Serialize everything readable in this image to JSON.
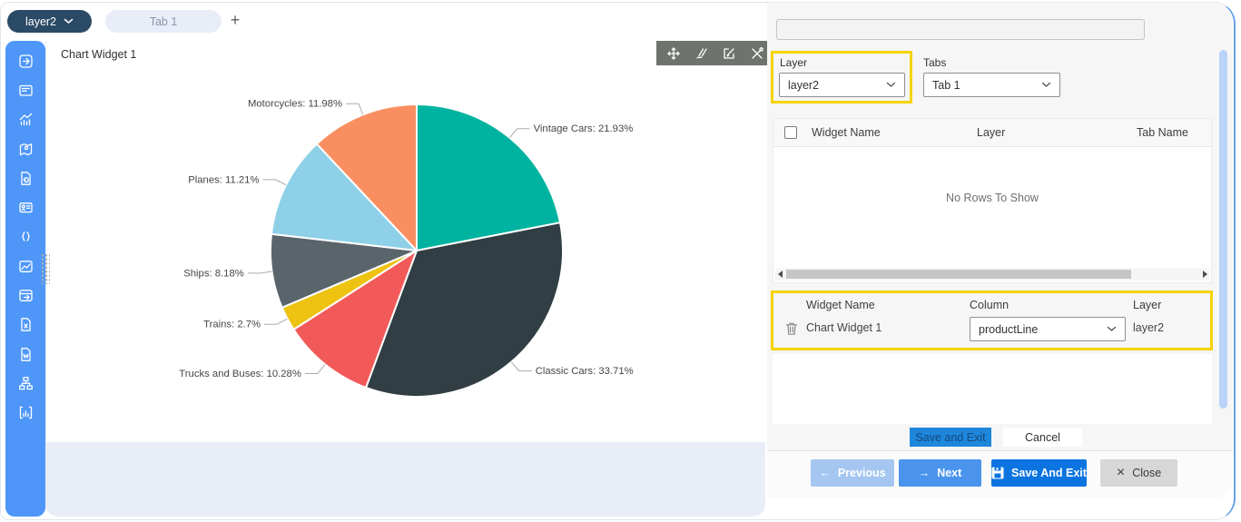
{
  "topbar": {
    "layer_pill_label": "layer2",
    "tab_label": "Tab 1",
    "add_tab_label": "+"
  },
  "sidebar": {
    "icon_names": [
      "export-widget-icon",
      "form-widget-icon",
      "chart-trend-widget-icon",
      "map-widget-icon",
      "file-refresh-widget-icon",
      "id-card-widget-icon",
      "braces-widget-icon",
      "image-chart-widget-icon",
      "table-export-widget-icon",
      "excel-file-widget-icon",
      "word-file-widget-icon",
      "hierarchy-widget-icon",
      "bar-chart-widget-icon"
    ]
  },
  "widget": {
    "title": "Chart Widget 1",
    "toolbar_icon_names": [
      "move-icon",
      "draw-icon",
      "edit-icon",
      "tools-icon"
    ]
  },
  "chart_data": {
    "type": "pie",
    "title": "Chart Widget 1",
    "labels": [
      "Vintage Cars",
      "Classic Cars",
      "Trucks and Buses",
      "Trains",
      "Ships",
      "Planes",
      "Motorcycles"
    ],
    "values": [
      21.93,
      33.71,
      10.28,
      2.7,
      8.18,
      11.21,
      11.98
    ],
    "colors": [
      "#00b3a0",
      "#313e44",
      "#f25a5a",
      "#edc211",
      "#5a646b",
      "#8ed0e7",
      "#f98f61"
    ],
    "label_format": "{label}: {value}%",
    "start_angle_deg": 0,
    "direction": "clockwise",
    "legend": "none"
  },
  "panel": {
    "top_input": {
      "value": "",
      "placeholder": ""
    },
    "layer_field": {
      "label": "Layer",
      "value": "layer2"
    },
    "tabs_field": {
      "label": "Tabs",
      "value": "Tab 1"
    },
    "widgets_table": {
      "columns": [
        "Widget Name",
        "Layer",
        "Tab Name"
      ],
      "empty_text": "No Rows To Show"
    },
    "mapping_table": {
      "columns": [
        "Widget Name",
        "Column",
        "Layer"
      ],
      "rows": [
        {
          "widget_name": "Chart Widget 1",
          "column": "productLine",
          "layer": "layer2"
        }
      ]
    },
    "small_actions": {
      "save_label": "Save and Exit",
      "cancel_label": "Cancel"
    },
    "footer": {
      "previous_label": "Previous",
      "next_label": "Next",
      "save_and_exit_label": "Save And Exit",
      "close_label": "Close",
      "previous_icon": "←",
      "next_icon": "→",
      "close_icon": "×"
    }
  },
  "colors": {
    "sidebar_blue": "#4e97f8",
    "pill_navy": "#2b4a66",
    "canvas_lavender": "#e9edf8",
    "highlight_yellow": "#f5d300",
    "primary_blue": "#0b74e0",
    "next_blue": "#4a94ee",
    "previous_blue": "#a4c6f1",
    "close_gray": "#d7d7d7",
    "toolbar_gray": "#6e736e",
    "scrollbar_blue": "#b9d4f8"
  }
}
